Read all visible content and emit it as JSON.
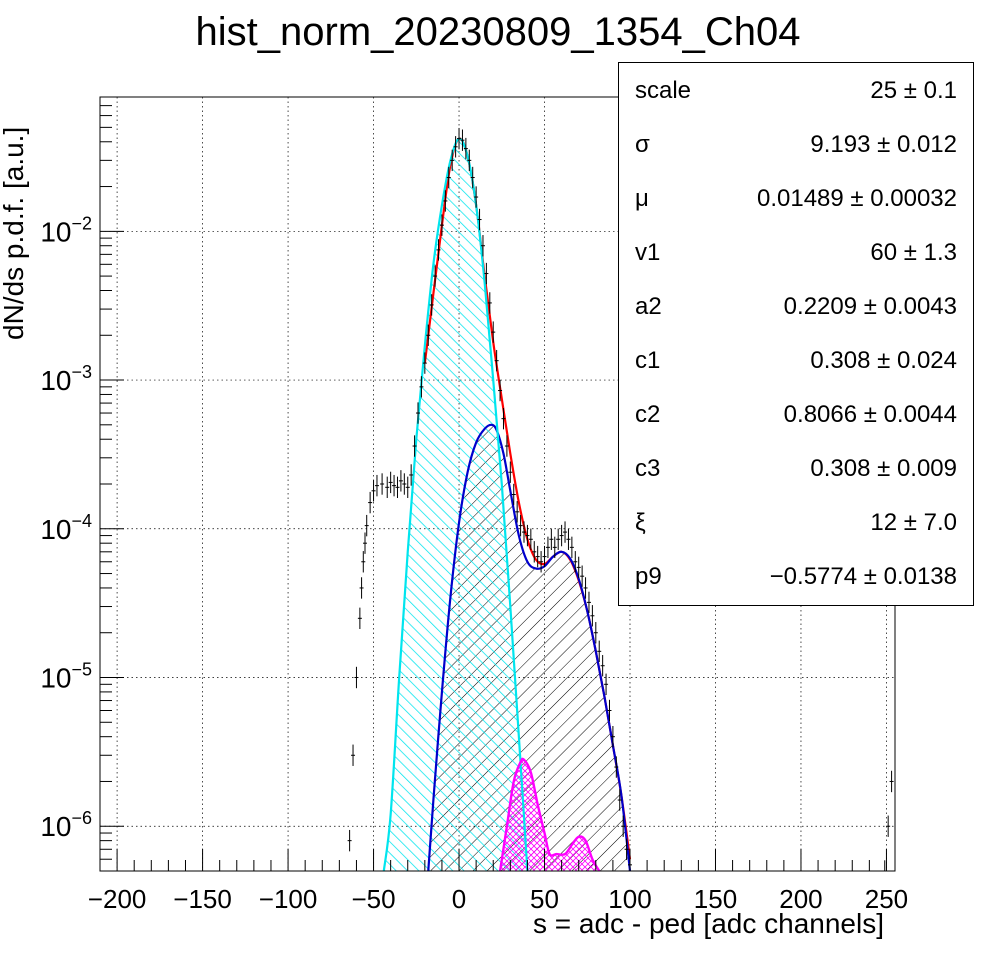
{
  "title": "hist_norm_20230809_1354_Ch04",
  "stats": [
    {
      "name": "scale",
      "value": "25 ± 0.1"
    },
    {
      "name": "σ",
      "value": "9.193 ± 0.012"
    },
    {
      "name": "μ",
      "value": "0.01489 ± 0.00032"
    },
    {
      "name": "v1",
      "value": "60 ± 1.3"
    },
    {
      "name": "a2",
      "value": "0.2209 ± 0.0043"
    },
    {
      "name": "c1",
      "value": "0.308 ± 0.024"
    },
    {
      "name": "c2",
      "value": "0.8066 ± 0.0044"
    },
    {
      "name": "c3",
      "value": "0.308 ± 0.009"
    },
    {
      "name": "ξ",
      "value": "12 ± 7.0"
    },
    {
      "name": "p9",
      "value": "−0.5774 ± 0.0138"
    }
  ],
  "chart_data": {
    "type": "line",
    "title": "hist_norm_20230809_1354_Ch04",
    "xlabel": "s = adc - ped [adc channels]",
    "ylabel": "dN/ds p.d.f. [a.u.]",
    "xlim": [
      -210,
      255
    ],
    "ylim": [
      5e-07,
      0.08
    ],
    "yscale": "log",
    "grid": true,
    "x_ticks": [
      -200,
      -150,
      -100,
      -50,
      0,
      50,
      100,
      150,
      200,
      250
    ],
    "x_tick_labels": [
      "−200",
      "−150",
      "−100",
      "−50",
      "0",
      "50",
      "100",
      "150",
      "200",
      "250"
    ],
    "y_ticks": [
      {
        "value": 1e-06,
        "base": "10",
        "exp": "−6"
      },
      {
        "value": 1e-05,
        "base": "10",
        "exp": "−5"
      },
      {
        "value": 0.0001,
        "base": "10",
        "exp": "−4"
      },
      {
        "value": 0.001,
        "base": "10",
        "exp": "−3"
      },
      {
        "value": 0.01,
        "base": "10",
        "exp": "−2"
      }
    ],
    "colors": {
      "data": "#000000",
      "total_fit": "#ff0000",
      "pedestal": "#00e5ee",
      "signal": "#0000cc",
      "secondary": "#ff00ff",
      "hatch_black": "#000000"
    },
    "series": [
      {
        "role": "data",
        "points": [
          [
            -64,
            8e-07
          ],
          [
            -62,
            3e-06
          ],
          [
            -60,
            1e-05
          ],
          [
            -58,
            2.5e-05
          ],
          [
            -57,
            4e-05
          ],
          [
            -56,
            6e-05
          ],
          [
            -55,
            8e-05
          ],
          [
            -54,
            0.000105
          ],
          [
            -52,
            0.00015
          ],
          [
            -50,
            0.00018
          ],
          [
            -48,
            0.000195
          ],
          [
            -45,
            0.0002
          ],
          [
            -42,
            0.00019
          ],
          [
            -40,
            0.000205
          ],
          [
            -38,
            0.000195
          ],
          [
            -36,
            0.00019
          ],
          [
            -34,
            0.00021
          ],
          [
            -32,
            0.0002
          ],
          [
            -30,
            0.00019
          ],
          [
            -28,
            0.00023
          ],
          [
            -26,
            0.00036
          ],
          [
            -24,
            0.0006
          ],
          [
            -22,
            0.0009
          ],
          [
            -20,
            0.0013
          ],
          [
            -18,
            0.002
          ],
          [
            -16,
            0.0032
          ],
          [
            -14,
            0.005
          ],
          [
            -12,
            0.0075
          ],
          [
            -10,
            0.011
          ],
          [
            -8,
            0.016
          ],
          [
            -6,
            0.023
          ],
          [
            -4,
            0.03
          ],
          [
            -2,
            0.037
          ],
          [
            0,
            0.042
          ],
          [
            2,
            0.041
          ],
          [
            4,
            0.036
          ],
          [
            6,
            0.03
          ],
          [
            8,
            0.023
          ],
          [
            10,
            0.017
          ],
          [
            12,
            0.012
          ],
          [
            14,
            0.008
          ],
          [
            16,
            0.0052
          ],
          [
            18,
            0.0033
          ],
          [
            20,
            0.0021
          ],
          [
            22,
            0.00135
          ],
          [
            24,
            0.00085
          ],
          [
            26,
            0.00055
          ],
          [
            28,
            0.00036
          ],
          [
            30,
            0.00024
          ],
          [
            32,
            0.00017
          ],
          [
            34,
            0.00013
          ],
          [
            36,
            0.000105
          ],
          [
            38,
            9.5e-05
          ],
          [
            40,
            9e-05
          ],
          [
            42,
            8.5e-05
          ],
          [
            44,
            7e-05
          ],
          [
            46,
            6.5e-05
          ],
          [
            48,
            6e-05
          ],
          [
            50,
            6.5e-05
          ],
          [
            52,
            7.5e-05
          ],
          [
            54,
            8.5e-05
          ],
          [
            56,
            7.5e-05
          ],
          [
            58,
            8.5e-05
          ],
          [
            60,
            9e-05
          ],
          [
            62,
            9.5e-05
          ],
          [
            64,
            8.5e-05
          ],
          [
            66,
            7.5e-05
          ],
          [
            68,
            6e-05
          ],
          [
            70,
            5.5e-05
          ],
          [
            72,
            4.8e-05
          ],
          [
            74,
            4e-05
          ],
          [
            76,
            3.2e-05
          ],
          [
            78,
            2.6e-05
          ],
          [
            80,
            2e-05
          ],
          [
            82,
            1.5e-05
          ],
          [
            84,
            1.2e-05
          ],
          [
            86,
            9e-06
          ],
          [
            88,
            6e-06
          ],
          [
            90,
            4e-06
          ],
          [
            92,
            2.5e-06
          ],
          [
            94,
            1.5e-06
          ],
          [
            96,
            1e-06
          ],
          [
            98,
            7e-07
          ],
          [
            100,
            5.5e-07
          ],
          [
            249,
            5e-07
          ],
          [
            251,
            1e-06
          ],
          [
            253,
            2e-06
          ]
        ]
      },
      {
        "role": "total_fit",
        "points": [
          [
            -20,
            0.0013
          ],
          [
            -10,
            0.011
          ],
          [
            -5,
            0.028
          ],
          [
            0,
            0.042
          ],
          [
            5,
            0.032
          ],
          [
            10,
            0.015
          ],
          [
            15,
            0.005
          ],
          [
            20,
            0.0018
          ],
          [
            25,
            0.00075
          ],
          [
            30,
            0.00032
          ],
          [
            35,
            0.00015
          ],
          [
            40,
            8.5e-05
          ],
          [
            45,
            6.2e-05
          ],
          [
            50,
            5.8e-05
          ],
          [
            55,
            6.5e-05
          ],
          [
            60,
            7e-05
          ],
          [
            65,
            6.2e-05
          ],
          [
            70,
            4.5e-05
          ],
          [
            75,
            2.8e-05
          ],
          [
            80,
            1.5e-05
          ],
          [
            85,
            7.5e-06
          ],
          [
            90,
            3.5e-06
          ],
          [
            95,
            1.6e-06
          ],
          [
            100,
            6e-07
          ]
        ]
      },
      {
        "role": "pedestal",
        "filled": true,
        "points": [
          [
            -44,
            5e-07
          ],
          [
            -40,
            1.2e-06
          ],
          [
            -35,
            1e-05
          ],
          [
            -30,
            7e-05
          ],
          [
            -25,
            0.0004
          ],
          [
            -20,
            0.0017
          ],
          [
            -15,
            0.006
          ],
          [
            -10,
            0.015
          ],
          [
            -5,
            0.03
          ],
          [
            0,
            0.042
          ],
          [
            5,
            0.032
          ],
          [
            10,
            0.015
          ],
          [
            15,
            0.0045
          ],
          [
            20,
            0.001
          ],
          [
            25,
            0.0002
          ],
          [
            30,
            3e-05
          ],
          [
            35,
            4e-06
          ],
          [
            40,
            5e-07
          ]
        ]
      },
      {
        "role": "signal",
        "filled": true,
        "points": [
          [
            -18,
            5e-07
          ],
          [
            -15,
            1.5e-06
          ],
          [
            -10,
            8e-06
          ],
          [
            -5,
            3.5e-05
          ],
          [
            0,
            0.00011
          ],
          [
            5,
            0.00024
          ],
          [
            10,
            0.00038
          ],
          [
            15,
            0.00047
          ],
          [
            19,
            0.0005
          ],
          [
            22,
            0.00046
          ],
          [
            26,
            0.00032
          ],
          [
            30,
            0.00018
          ],
          [
            35,
            9e-05
          ],
          [
            40,
            6e-05
          ],
          [
            45,
            5.4e-05
          ],
          [
            50,
            5.6e-05
          ],
          [
            55,
            6.5e-05
          ],
          [
            60,
            7e-05
          ],
          [
            65,
            6.3e-05
          ],
          [
            70,
            4.6e-05
          ],
          [
            75,
            2.8e-05
          ],
          [
            80,
            1.5e-05
          ],
          [
            85,
            7.5e-06
          ],
          [
            90,
            3.5e-06
          ],
          [
            95,
            1.6e-06
          ],
          [
            100,
            5e-07
          ]
        ]
      },
      {
        "role": "secondary",
        "filled": true,
        "points": [
          [
            24,
            5e-07
          ],
          [
            28,
            1e-06
          ],
          [
            32,
            2e-06
          ],
          [
            36,
            2.7e-06
          ],
          [
            38,
            2.8e-06
          ],
          [
            42,
            2.3e-06
          ],
          [
            46,
            1.4e-06
          ],
          [
            50,
            9e-07
          ],
          [
            53,
            6.5e-07
          ],
          [
            57,
            6.5e-07
          ],
          [
            62,
            6.5e-07
          ],
          [
            66,
            7.5e-07
          ],
          [
            70,
            8.5e-07
          ],
          [
            74,
            8e-07
          ],
          [
            78,
            6e-07
          ],
          [
            82,
            5e-07
          ]
        ]
      }
    ]
  }
}
